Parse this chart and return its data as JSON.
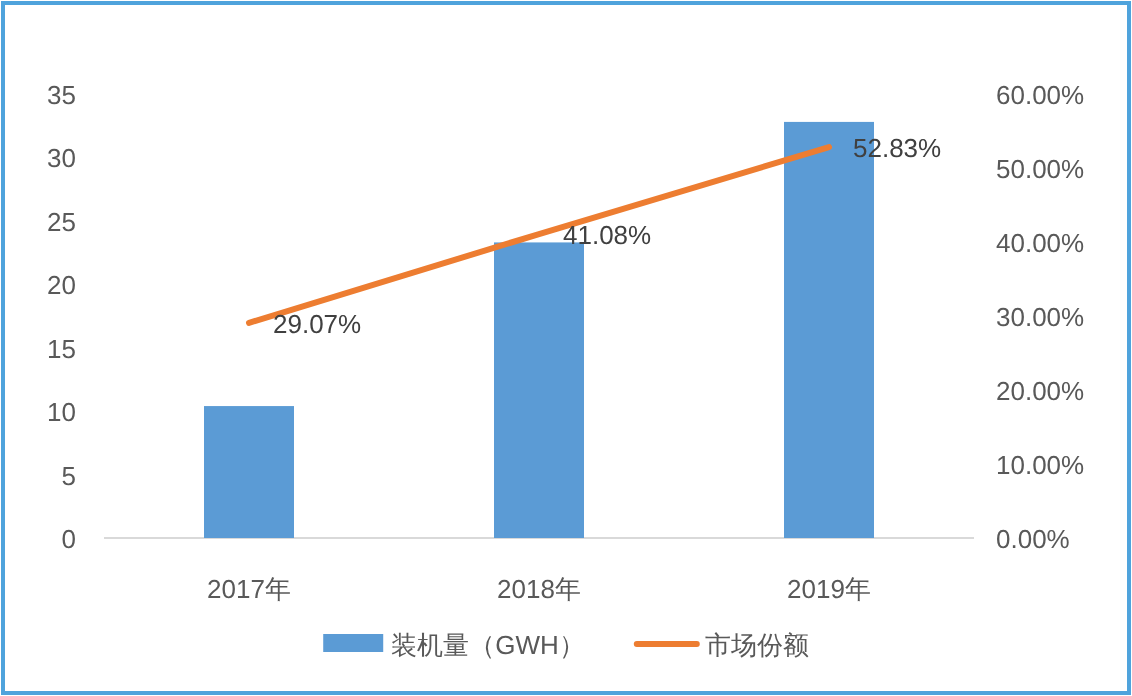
{
  "chart_data": {
    "type": "bar",
    "categories": [
      "2017年",
      "2018年",
      "2019年"
    ],
    "series": [
      {
        "name": "装机量（GWH）",
        "color": "#5b9bd5",
        "values": [
          10.4,
          23.3,
          32.8
        ]
      },
      {
        "name": "市场份额",
        "type": "line",
        "axis": "y2",
        "color": "#ed7d31",
        "values": [
          29.07,
          41.08,
          52.83
        ],
        "value_labels": [
          "29.07%",
          "41.08%",
          "52.83%"
        ]
      }
    ],
    "ylim": [
      0,
      35
    ],
    "yticks": [
      0,
      5,
      10,
      15,
      20,
      25,
      30,
      35
    ],
    "y2lim": [
      0,
      60
    ],
    "y2ticks": [
      {
        "value": 0,
        "label": "0.00%"
      },
      {
        "value": 10,
        "label": "10.00%"
      },
      {
        "value": 20,
        "label": "20.00%"
      },
      {
        "value": 30,
        "label": "30.00%"
      },
      {
        "value": 40,
        "label": "40.00%"
      },
      {
        "value": 50,
        "label": "50.00%"
      },
      {
        "value": 60,
        "label": "60.00%"
      }
    ],
    "legend": "bottom"
  }
}
